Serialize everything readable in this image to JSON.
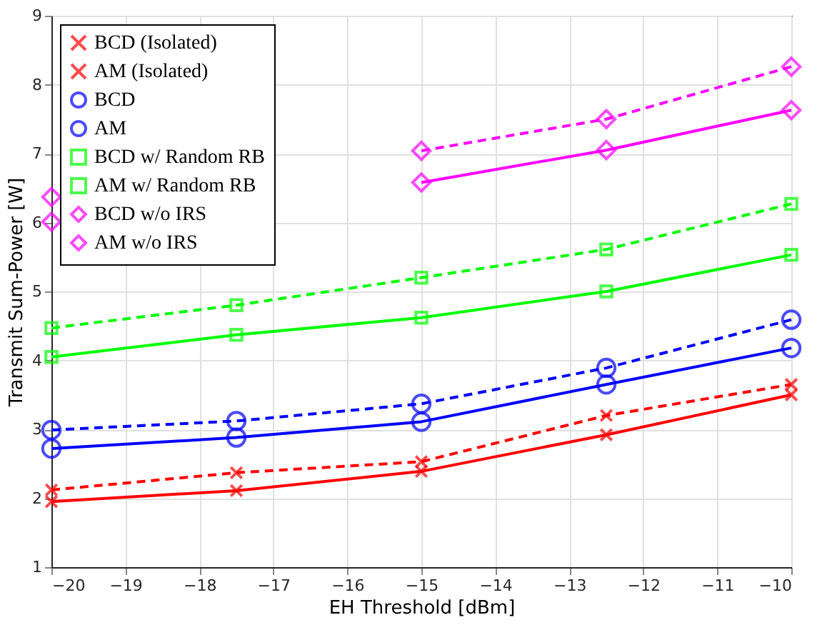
{
  "chart_data": {
    "type": "line",
    "xlabel": "EH Threshold [dBm]",
    "ylabel": "Transmit Sum-Power [W]",
    "x": [
      -20,
      -17.5,
      -15,
      -12.5,
      -10
    ],
    "xlim": [
      -20,
      -10
    ],
    "xticks": [
      -20,
      -19,
      -18,
      -17,
      -16,
      -15,
      -14,
      -13,
      -12,
      -11,
      -10
    ],
    "ylim": [
      1,
      9
    ],
    "yticks": [
      1,
      2,
      3,
      4,
      5,
      6,
      7,
      8,
      9
    ],
    "grid": true,
    "legend": "top left",
    "series": [
      {
        "name": "BCD (Isolated)",
        "color": "#ff0000",
        "marker": "cross",
        "line_style": "solid",
        "values": [
          1.95,
          2.11,
          2.39,
          2.92,
          3.5
        ]
      },
      {
        "name": "AM (Isolated)",
        "color": "#ff0000",
        "marker": "cross",
        "line_style": "dashed",
        "values": [
          2.12,
          2.37,
          2.53,
          3.2,
          3.65
        ]
      },
      {
        "name": "BCD",
        "color": "#0000ff",
        "marker": "circle",
        "line_style": "solid",
        "values": [
          2.72,
          2.88,
          3.11,
          3.65,
          4.18
        ]
      },
      {
        "name": "AM",
        "color": "#0000ff",
        "marker": "circle",
        "line_style": "dashed",
        "values": [
          2.99,
          3.12,
          3.37,
          3.89,
          4.59
        ]
      },
      {
        "name": "BCD w/ Random RB",
        "color": "#00ff00",
        "marker": "square",
        "line_style": "solid",
        "values": [
          4.05,
          4.37,
          4.62,
          5.0,
          5.53
        ]
      },
      {
        "name": "AM w/ Random RB",
        "color": "#00ff00",
        "marker": "square",
        "line_style": "dashed",
        "values": [
          4.47,
          4.8,
          5.2,
          5.61,
          6.27
        ]
      },
      {
        "name": "BCD w/o IRS",
        "color": "#ff00ff",
        "marker": "diamond",
        "line_style": "solid",
        "values": [
          6.01,
          null,
          6.58,
          7.05,
          7.63
        ]
      },
      {
        "name": "AM w/o IRS",
        "color": "#ff00ff",
        "marker": "diamond",
        "line_style": "dashed",
        "values": [
          6.37,
          null,
          7.04,
          7.5,
          8.26
        ]
      }
    ]
  }
}
